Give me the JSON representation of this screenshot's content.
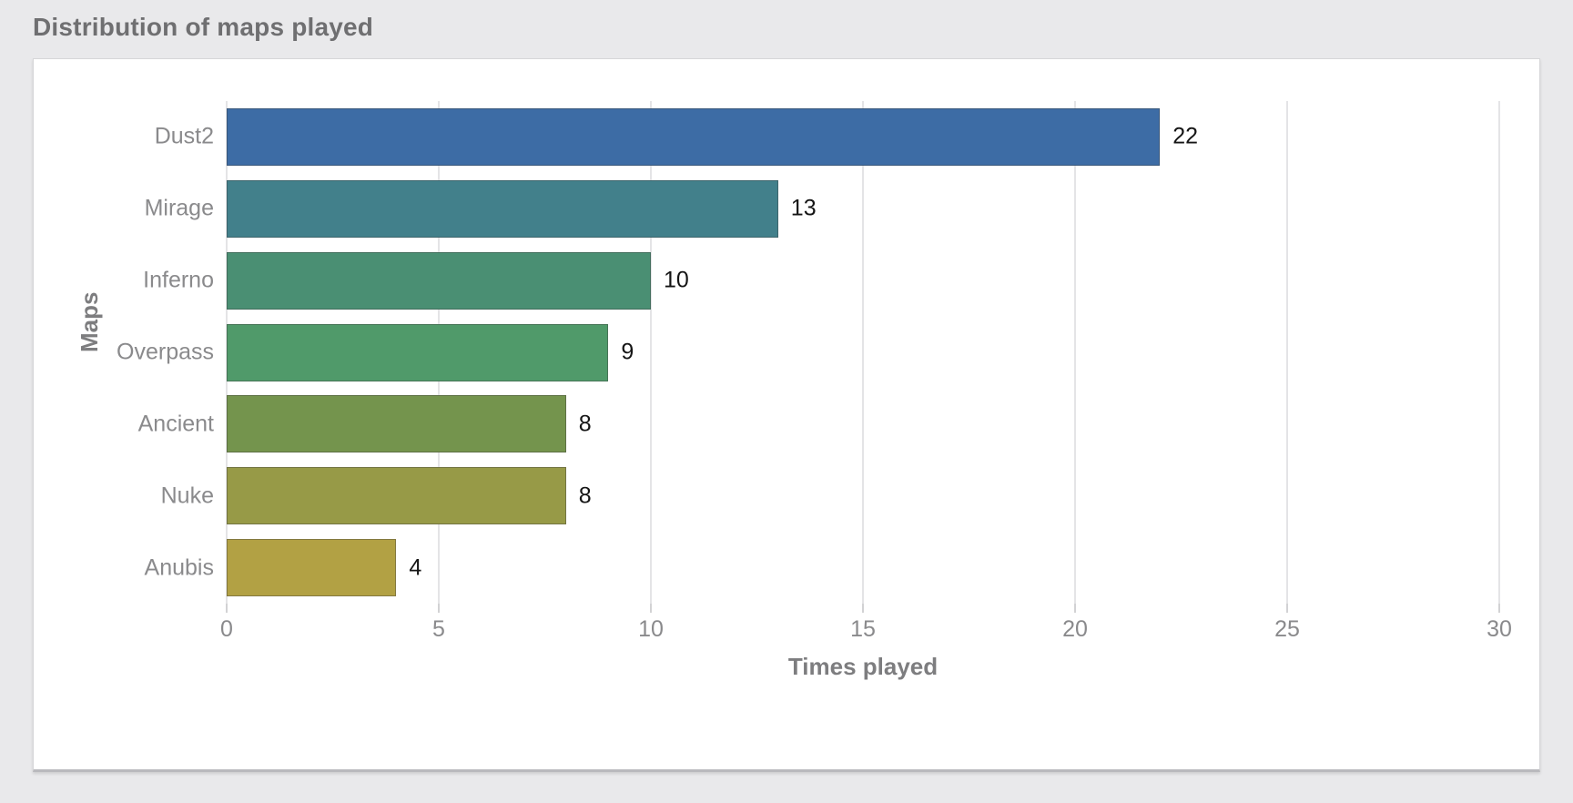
{
  "page": {
    "background_color": "#e9e9eb",
    "card_color": "#ffffff"
  },
  "header": {
    "title": "Distribution of maps played"
  },
  "chart_data": {
    "type": "bar",
    "orientation": "horizontal",
    "categories": [
      "Dust2",
      "Mirage",
      "Inferno",
      "Overpass",
      "Ancient",
      "Nuke",
      "Anubis"
    ],
    "values": [
      22,
      13,
      10,
      9,
      8,
      8,
      4
    ],
    "value_labels": [
      "22",
      "13",
      "10",
      "9",
      "8",
      "8",
      "4"
    ],
    "bar_colors": [
      "#3d6ca5",
      "#42808b",
      "#4a8f73",
      "#509a6a",
      "#74944d",
      "#979a47",
      "#b2a144"
    ],
    "xlabel": "Times played",
    "ylabel": "Maps",
    "xlim": [
      0,
      30
    ],
    "xticks": [
      0,
      5,
      10,
      15,
      20,
      25,
      30
    ],
    "xtick_labels": [
      "0",
      "5",
      "10",
      "15",
      "20",
      "25",
      "30"
    ],
    "grid": "vertical light gray, on all ticks including 0",
    "legend": "none",
    "title": "Distribution of maps played",
    "text_color_ticks": "#8a8a8c",
    "text_color_values": "#151515"
  }
}
